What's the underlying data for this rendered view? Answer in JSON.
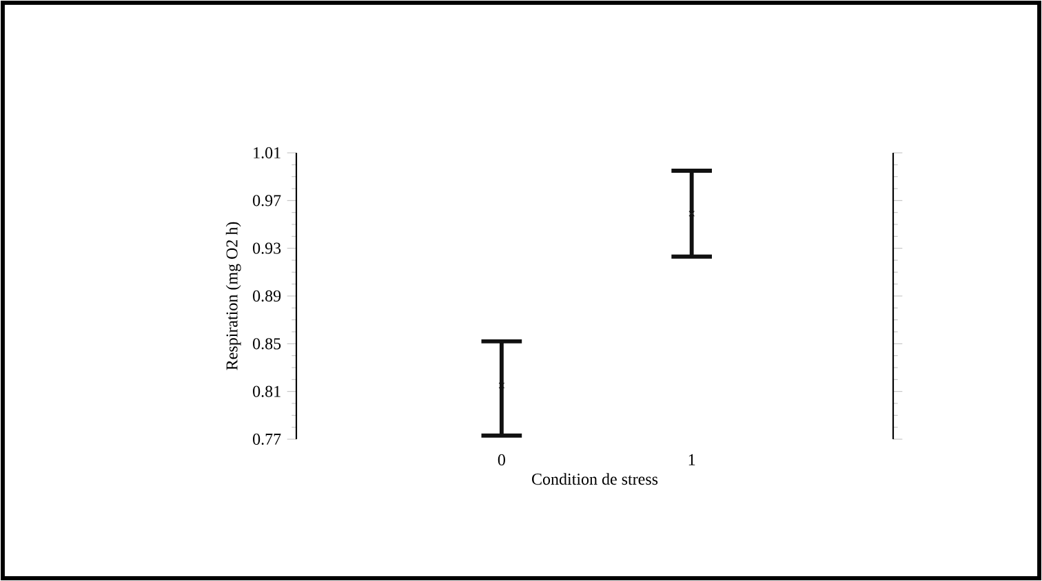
{
  "chart_data": {
    "type": "scatter",
    "xlabel": "Condition de stress",
    "ylabel": "Respiration (mg O2 h)",
    "categories": [
      "0",
      "1"
    ],
    "values": [
      0.815,
      0.959
    ],
    "errors": [
      [
        0.773,
        0.852
      ],
      [
        0.923,
        0.995
      ]
    ],
    "color": "#111111",
    "marker": "cross",
    "ylim": [
      0.77,
      1.01
    ],
    "yticks": [
      0.77,
      0.81,
      0.85,
      0.89,
      0.93,
      0.97,
      1.01
    ],
    "grid": false
  }
}
